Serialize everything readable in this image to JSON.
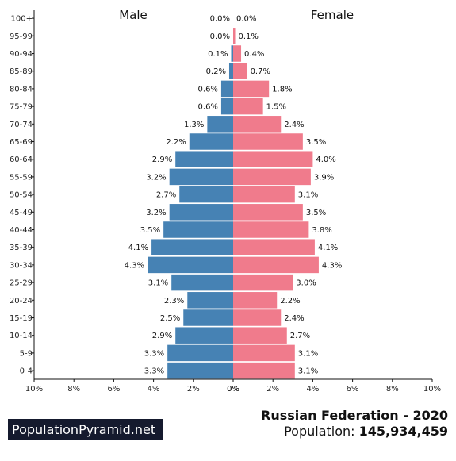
{
  "chart_data": {
    "type": "bar",
    "orientation": "horizontal-pyramid",
    "categories": [
      "100+",
      "95-99",
      "90-94",
      "85-89",
      "80-84",
      "75-79",
      "70-74",
      "65-69",
      "60-64",
      "55-59",
      "50-54",
      "45-49",
      "40-44",
      "35-39",
      "30-34",
      "25-29",
      "20-24",
      "15-19",
      "10-14",
      "5-9",
      "0-4"
    ],
    "series": [
      {
        "name": "Male",
        "color": "#4682b4",
        "values": [
          0.0,
          0.0,
          0.1,
          0.2,
          0.6,
          0.6,
          1.3,
          2.2,
          2.9,
          3.2,
          2.7,
          3.2,
          3.5,
          4.1,
          4.3,
          3.1,
          2.3,
          2.5,
          2.9,
          3.3,
          3.3
        ],
        "labels": [
          "0.0%",
          "0.0%",
          "0.1%",
          "0.2%",
          "0.6%",
          "0.6%",
          "1.3%",
          "2.2%",
          "2.9%",
          "3.2%",
          "2.7%",
          "3.2%",
          "3.5%",
          "4.1%",
          "4.3%",
          "3.1%",
          "2.3%",
          "2.5%",
          "2.9%",
          "3.3%",
          "3.3%"
        ]
      },
      {
        "name": "Female",
        "color": "#f07b8c",
        "values": [
          0.0,
          0.1,
          0.4,
          0.7,
          1.8,
          1.5,
          2.4,
          3.5,
          4.0,
          3.9,
          3.1,
          3.5,
          3.8,
          4.1,
          4.3,
          3.0,
          2.2,
          2.4,
          2.7,
          3.1,
          3.1
        ],
        "labels": [
          "0.0%",
          "0.1%",
          "0.4%",
          "0.7%",
          "1.8%",
          "1.5%",
          "2.4%",
          "3.5%",
          "4.0%",
          "3.9%",
          "3.1%",
          "3.5%",
          "3.8%",
          "4.1%",
          "4.3%",
          "3.0%",
          "2.2%",
          "2.4%",
          "2.7%",
          "3.1%",
          "3.1%"
        ]
      }
    ],
    "xlim": [
      0,
      10
    ],
    "xticks_left": [
      "10%",
      "8%",
      "6%",
      "4%",
      "2%",
      "0%"
    ],
    "xticks_right": [
      "0%",
      "2%",
      "4%",
      "6%",
      "8%",
      "10%"
    ],
    "grid": false
  },
  "footer": {
    "brand": "PopulationPyramid.net",
    "title": "Russian Federation - 2020",
    "population_label": "Population:",
    "population_value": "145,934,459"
  }
}
